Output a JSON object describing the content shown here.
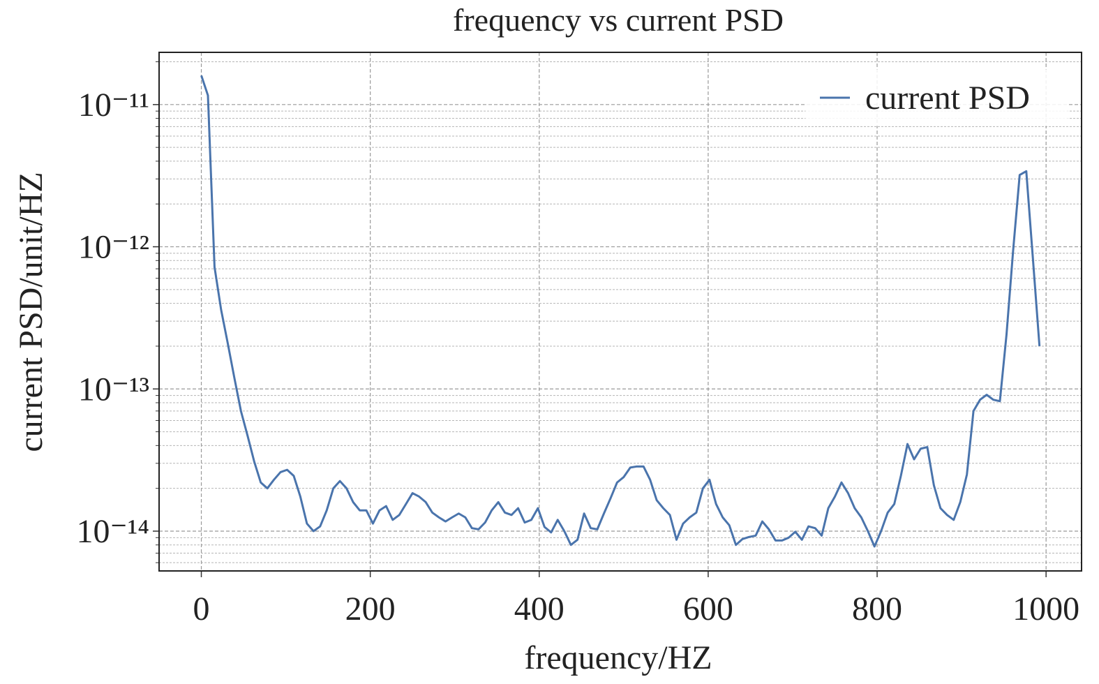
{
  "chart_data": {
    "type": "line",
    "title": "frequency vs current PSD",
    "xlabel": "frequency/HZ",
    "ylabel": "current PSD/unit/HZ",
    "yscale": "log",
    "grid": true,
    "minor_grid": true,
    "legend": "upper right",
    "xlim": [
      -50,
      1042
    ],
    "xticks": [
      0,
      200,
      400,
      600,
      800,
      1000
    ],
    "ylim": [
      5.25e-15,
      2.33e-11
    ],
    "yticks": [
      {
        "value": 1e-14,
        "label": "10⁻¹⁴"
      },
      {
        "value": 1e-13,
        "label": "10⁻¹³"
      },
      {
        "value": 1e-12,
        "label": "10⁻¹²"
      },
      {
        "value": 1e-11,
        "label": "10⁻¹¹"
      }
    ],
    "yminorticks": [
      6e-15,
      7e-15,
      8e-15,
      9e-15,
      2e-14,
      3e-14,
      4e-14,
      5e-14,
      6e-14,
      7e-14,
      8e-14,
      9e-14,
      2e-13,
      3e-13,
      4e-13,
      5e-13,
      6e-13,
      7e-13,
      8e-13,
      9e-13,
      2e-12,
      3e-12,
      4e-12,
      5e-12,
      6e-12,
      7e-12,
      8e-12,
      9e-12,
      2e-11
    ],
    "x": [
      0,
      7.8125,
      15.625,
      23.4375,
      31.25,
      39.0625,
      46.875,
      54.6875,
      62.5,
      70.3125,
      78.125,
      85.9375,
      93.75,
      101.5625,
      109.375,
      117.1875,
      125,
      132.8125,
      140.625,
      148.4375,
      156.25,
      164.0625,
      171.875,
      179.6875,
      187.5,
      195.3125,
      203.125,
      210.9375,
      218.75,
      226.5625,
      234.375,
      242.1875,
      250,
      257.8125,
      265.625,
      273.4375,
      281.25,
      289.0625,
      296.875,
      304.6875,
      312.5,
      320.3125,
      328.125,
      335.9375,
      343.75,
      351.5625,
      359.375,
      367.1875,
      375,
      382.8125,
      390.625,
      398.4375,
      406.25,
      414.0625,
      421.875,
      429.6875,
      437.5,
      445.3125,
      453.125,
      460.9375,
      468.75,
      476.5625,
      484.375,
      492.1875,
      500,
      507.8125,
      515.625,
      523.4375,
      531.25,
      539.0625,
      546.875,
      554.6875,
      562.5,
      570.3125,
      578.125,
      585.9375,
      593.75,
      601.5625,
      609.375,
      617.1875,
      625,
      632.8125,
      640.625,
      648.4375,
      656.25,
      664.0625,
      671.875,
      679.6875,
      687.5,
      695.3125,
      703.125,
      710.9375,
      718.75,
      726.5625,
      734.375,
      742.1875,
      750,
      757.8125,
      765.625,
      773.4375,
      781.25,
      789.0625,
      796.875,
      804.6875,
      812.5,
      820.3125,
      828.125,
      835.9375,
      843.75,
      851.5625,
      859.375,
      867.1875,
      875,
      882.8125,
      890.625,
      898.4375,
      906.25,
      914.0625,
      921.875,
      929.6875,
      937.5,
      945.3125,
      953.125,
      960.9375,
      968.75,
      976.5625,
      984.375,
      992.1875
    ],
    "series": [
      {
        "name": "current PSD",
        "color": "#4a74ac",
        "values": [
          1.6e-11,
          1.16e-11,
          7.2e-13,
          3.6e-13,
          2.1e-13,
          1.2e-13,
          7e-14,
          4.7e-14,
          3.1e-14,
          2.2e-14,
          2e-14,
          2.3e-14,
          2.6e-14,
          2.7e-14,
          2.45e-14,
          1.75e-14,
          1.13e-14,
          1e-14,
          1.08e-14,
          1.4e-14,
          2e-14,
          2.25e-14,
          2e-14,
          1.6e-14,
          1.4e-14,
          1.4e-14,
          1.13e-14,
          1.4e-14,
          1.5e-14,
          1.2e-14,
          1.3e-14,
          1.55e-14,
          1.85e-14,
          1.75e-14,
          1.6e-14,
          1.35e-14,
          1.25e-14,
          1.17e-14,
          1.25e-14,
          1.33e-14,
          1.25e-14,
          1.05e-14,
          1.03e-14,
          1.15e-14,
          1.4e-14,
          1.6e-14,
          1.35e-14,
          1.3e-14,
          1.45e-14,
          1.15e-14,
          1.2e-14,
          1.45e-14,
          1.07e-14,
          9.8e-15,
          1.2e-14,
          1e-14,
          8e-15,
          8.7e-15,
          1.33e-14,
          1.05e-14,
          1.03e-14,
          1.33e-14,
          1.7e-14,
          2.2e-14,
          2.4e-14,
          2.8e-14,
          2.85e-14,
          2.85e-14,
          2.3e-14,
          1.65e-14,
          1.45e-14,
          1.3e-14,
          8.7e-15,
          1.13e-14,
          1.25e-14,
          1.35e-14,
          2e-14,
          2.3e-14,
          1.55e-14,
          1.25e-14,
          1.1e-14,
          8e-15,
          8.8e-15,
          9.1e-15,
          9.3e-15,
          1.17e-14,
          1.03e-14,
          8.6e-15,
          8.6e-15,
          9e-15,
          9.9e-15,
          8.7e-15,
          1.08e-14,
          1.05e-14,
          9.3e-15,
          1.45e-14,
          1.75e-14,
          2.2e-14,
          1.85e-14,
          1.45e-14,
          1.25e-14,
          1e-14,
          7.8e-15,
          1e-14,
          1.35e-14,
          1.55e-14,
          2.45e-14,
          4.1e-14,
          3.2e-14,
          3.8e-14,
          3.9e-14,
          2.1e-14,
          1.45e-14,
          1.3e-14,
          1.2e-14,
          1.6e-14,
          2.5e-14,
          7e-14,
          8.4e-14,
          9.1e-14,
          8.4e-14,
          8.2e-14,
          2.4e-13,
          9.3e-13,
          3.2e-12,
          3.4e-12,
          8.3e-13,
          2e-13
        ]
      }
    ]
  }
}
